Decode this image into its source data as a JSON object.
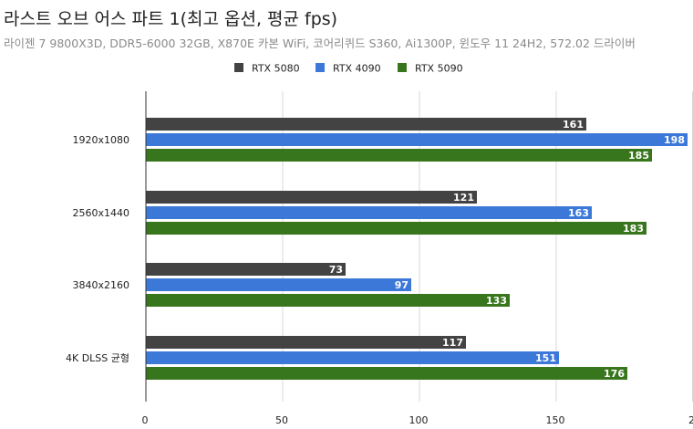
{
  "chart_data": {
    "type": "bar",
    "orientation": "horizontal",
    "title": "라스트 오브 어스 파트 1(최고 옵션, 평균 fps)",
    "subtitle": "라이젠 7 9800X3D, DDR5-6000 32GB, X870E 카본 WiFi, 코어리퀴드 S360, Ai1300P, 윈도우 11 24H2, 572.02 드라이버",
    "categories": [
      "1920x1080",
      "2560x1440",
      "3840x2160",
      "4K DLSS 균형"
    ],
    "series": [
      {
        "name": "RTX 5080",
        "color": "#434343",
        "values": [
          161,
          121,
          73,
          117
        ]
      },
      {
        "name": "RTX 4090",
        "color": "#3c78d8",
        "values": [
          198,
          163,
          97,
          151
        ]
      },
      {
        "name": "RTX 5090",
        "color": "#38761d",
        "values": [
          185,
          183,
          133,
          176
        ]
      }
    ],
    "x_ticks": [
      "0",
      "50",
      "100",
      "150",
      "2"
    ],
    "xlim": [
      0,
      200
    ],
    "legend": "top-center",
    "grid": true
  }
}
